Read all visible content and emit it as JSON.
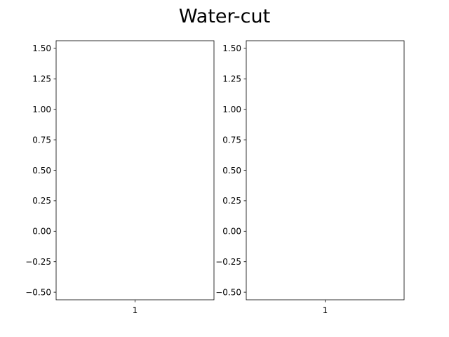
{
  "figure": {
    "title": "Water-cut"
  },
  "chart_data": [
    {
      "type": "bar",
      "title": "",
      "xlabel": "",
      "ylabel": "",
      "categories": [
        "1"
      ],
      "series": [],
      "ylim": [
        -0.5625,
        1.5625
      ],
      "yticks": [
        -0.5,
        -0.25,
        0.0,
        0.25,
        0.5,
        0.75,
        1.0,
        1.25,
        1.5
      ],
      "ytick_labels": [
        "−0.50",
        "−0.25",
        "0.00",
        "0.25",
        "0.50",
        "0.75",
        "1.00",
        "1.25",
        "1.50"
      ],
      "grid": false
    },
    {
      "type": "bar",
      "title": "",
      "xlabel": "",
      "ylabel": "",
      "categories": [
        "1"
      ],
      "series": [],
      "ylim": [
        -0.5625,
        1.5625
      ],
      "yticks": [
        -0.5,
        -0.25,
        0.0,
        0.25,
        0.5,
        0.75,
        1.0,
        1.25,
        1.5
      ],
      "ytick_labels": [
        "−0.50",
        "−0.25",
        "0.00",
        "0.25",
        "0.50",
        "0.75",
        "1.00",
        "1.25",
        "1.50"
      ],
      "grid": false
    }
  ]
}
